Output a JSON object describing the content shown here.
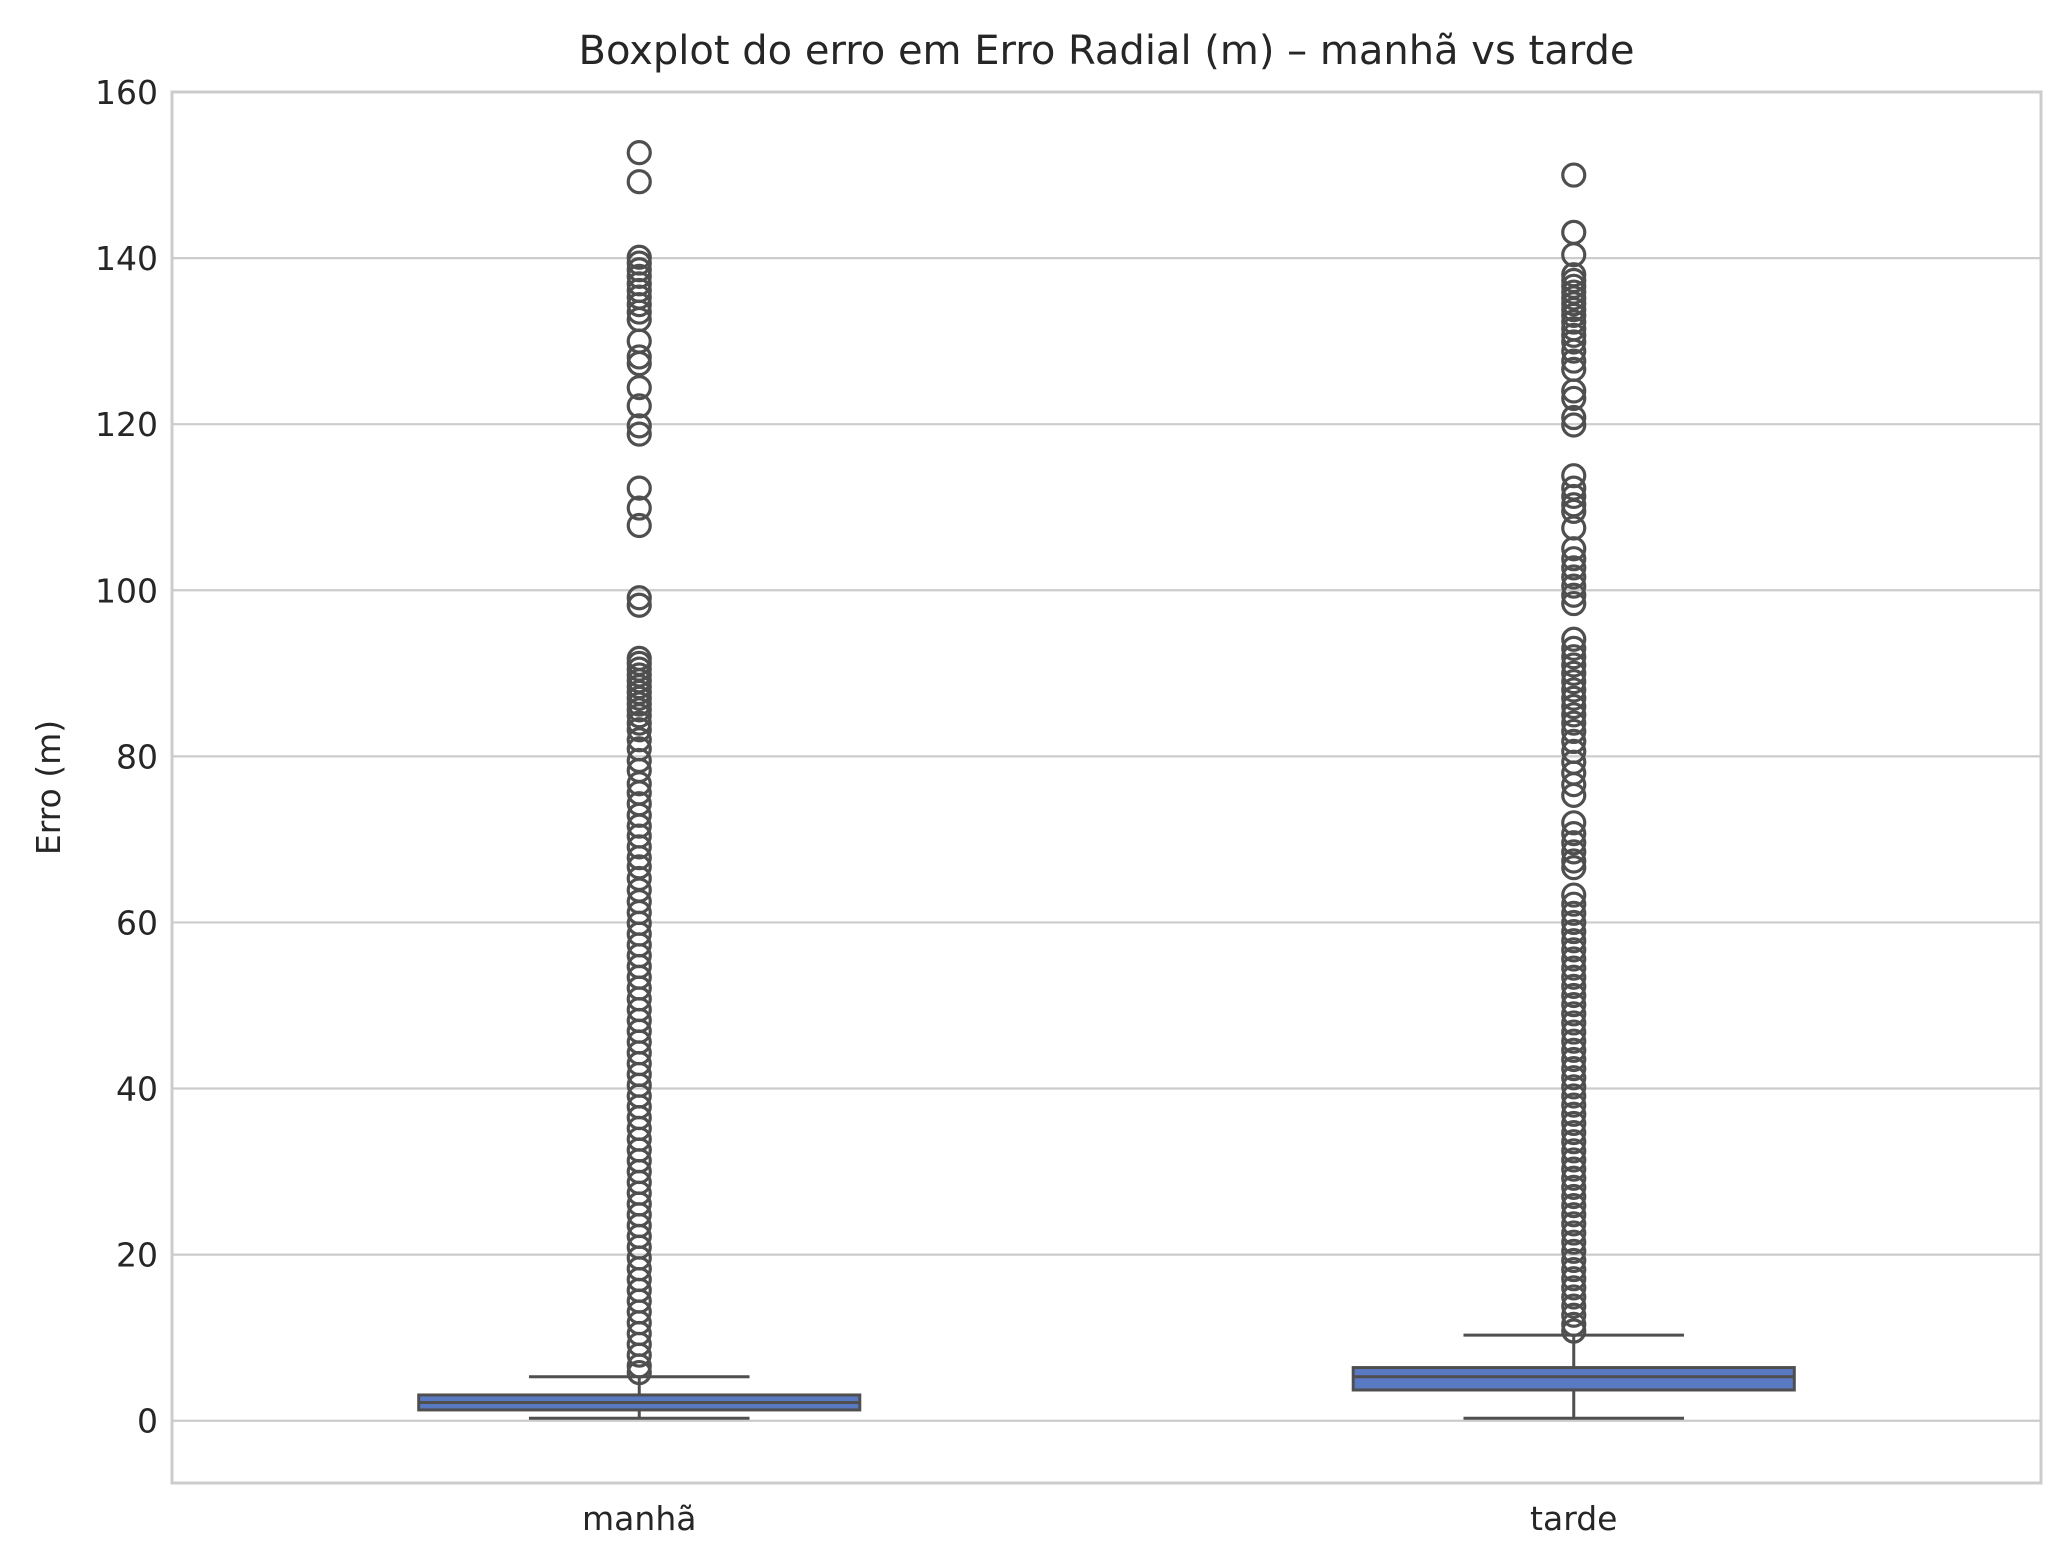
{
  "chart_data": {
    "type": "box",
    "title": "Boxplot do erro em Erro Radial (m) – manhã vs tarde",
    "xlabel": "",
    "ylabel": "Erro (m)",
    "ylim": [
      -7.5,
      160
    ],
    "yticks": [
      0,
      20,
      40,
      60,
      80,
      100,
      120,
      140,
      160
    ],
    "grid": true,
    "categories": [
      "manhã",
      "tarde"
    ],
    "box_color": "#5a79c3",
    "line_color": "#4f4f4f",
    "boxes": [
      {
        "category": "manhã",
        "whisker_low": 0.3,
        "q1": 1.3,
        "median": 2.2,
        "q3": 3.1,
        "whisker_high": 5.3,
        "outliers": [
          152.7,
          149.2,
          140.1,
          139.4,
          138.6,
          137.8,
          136.9,
          136.1,
          135.3,
          134.4,
          133.5,
          132.6,
          130.0,
          128.1,
          127.3,
          124.4,
          122.2,
          119.8,
          118.8,
          112.3,
          109.9,
          107.8,
          99.1,
          98.2,
          91.8,
          91.2,
          90.5,
          89.8,
          89.1,
          88.4,
          87.7,
          87.0,
          86.3,
          85.6,
          84.9,
          84.0,
          83.2,
          82.0,
          80.9,
          79.5,
          78.3,
          76.7,
          75.6,
          74.3,
          72.9,
          71.6,
          70.4,
          69.1,
          67.8,
          66.7,
          65.3,
          63.9,
          62.5,
          61.2,
          59.9,
          58.6,
          57.3,
          56.0,
          54.7,
          53.4,
          52.1,
          50.8,
          49.5,
          48.2,
          46.9,
          45.6,
          44.3,
          43.0,
          41.7,
          40.4,
          39.1,
          37.8,
          36.5,
          35.2,
          33.9,
          32.6,
          31.3,
          30.0,
          28.7,
          27.4,
          26.1,
          24.8,
          23.5,
          22.2,
          20.9,
          19.6,
          18.3,
          17.0,
          15.7,
          14.4,
          13.1,
          11.8,
          10.5,
          9.2,
          7.9,
          6.6,
          5.8
        ]
      },
      {
        "category": "tarde",
        "whisker_low": 0.3,
        "q1": 3.7,
        "median": 5.3,
        "q3": 6.4,
        "whisker_high": 10.3,
        "outliers": [
          150.0,
          143.1,
          140.4,
          138.0,
          137.3,
          136.6,
          135.9,
          135.2,
          134.5,
          133.8,
          133.1,
          132.3,
          131.5,
          130.7,
          129.9,
          128.8,
          127.6,
          126.6,
          124.0,
          123.1,
          120.8,
          119.9,
          113.8,
          112.3,
          111.3,
          110.3,
          109.5,
          107.5,
          105.0,
          103.8,
          102.7,
          101.6,
          100.5,
          99.4,
          98.4,
          94.1,
          93.0,
          92.0,
          91.0,
          90.0,
          89.0,
          88.0,
          87.0,
          86.0,
          85.0,
          84.0,
          83.0,
          81.8,
          80.6,
          79.3,
          78.0,
          76.6,
          75.3,
          72.0,
          70.7,
          69.6,
          68.5,
          67.4,
          66.6,
          63.3,
          62.2,
          61.1,
          60.0,
          58.9,
          57.8,
          56.7,
          55.6,
          54.5,
          53.4,
          52.3,
          51.2,
          50.1,
          49.0,
          47.9,
          46.8,
          45.7,
          44.6,
          43.5,
          42.4,
          41.3,
          40.2,
          39.1,
          38.0,
          36.9,
          35.8,
          34.7,
          33.6,
          32.5,
          31.4,
          30.3,
          29.2,
          28.1,
          27.0,
          25.9,
          24.8,
          23.7,
          22.6,
          21.5,
          20.4,
          19.3,
          18.2,
          17.1,
          16.0,
          14.9,
          13.8,
          12.7,
          11.6,
          10.8
        ]
      }
    ]
  }
}
